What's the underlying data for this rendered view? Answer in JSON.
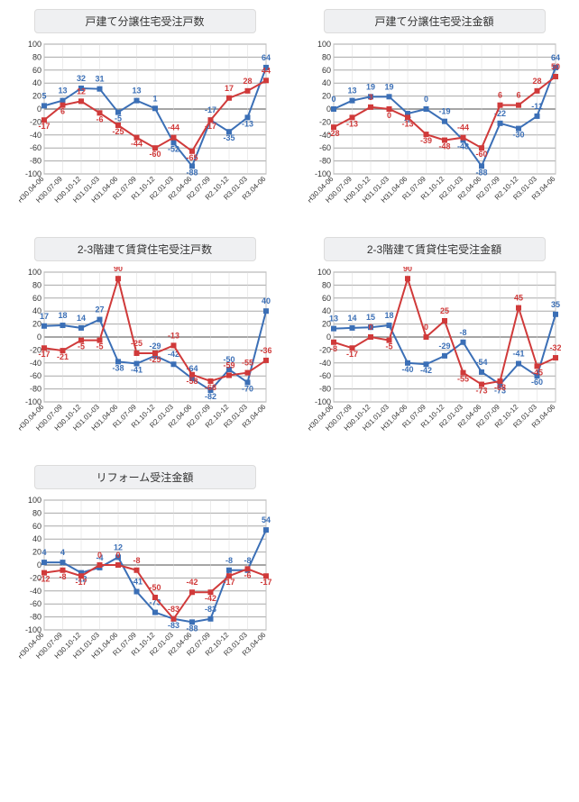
{
  "layout": {
    "cols": 2,
    "rows": 3
  },
  "common": {
    "ylim": [
      -100,
      100
    ],
    "ytick_step": 20,
    "xlabels": [
      "H30.04-06",
      "H30.07-09",
      "H30.10-12",
      "H31.01-03",
      "H31.04-06",
      "R1.07-09",
      "R1.10-12",
      "R2.01-03",
      "R2.04-06",
      "R2.07-09",
      "R2.10-12",
      "R3.01-03",
      "R3.04-06"
    ],
    "background_color": "#ffffff",
    "grid_major_color": "#a8a8a8",
    "grid_minor_color": "#d8d8d8",
    "series_colors": {
      "blue": "#3b6fb6",
      "red": "#d03a3a"
    },
    "marker_size": 3,
    "line_width": 2,
    "title_bg": "#eff0f2",
    "title_border": "#dcdcdc"
  },
  "charts": [
    {
      "id": "chart1",
      "title": "戸建て分譲住宅受注戸数",
      "series": [
        {
          "color": "blue",
          "values": [
            5,
            13,
            32,
            31,
            -5,
            13,
            1,
            -52,
            -88,
            -17,
            -35,
            -13,
            64
          ],
          "label_offsets": [
            -8,
            -8,
            -8,
            -8,
            10,
            -8,
            -8,
            10,
            10,
            -8,
            10,
            10,
            -8
          ]
        },
        {
          "color": "red",
          "values": [
            -17,
            6,
            12,
            -6,
            -25,
            -44,
            -60,
            -44,
            -65,
            -17,
            17,
            28,
            44
          ],
          "label_offsets": [
            10,
            10,
            -8,
            10,
            10,
            10,
            10,
            -8,
            10,
            10,
            -8,
            -8,
            -8
          ]
        }
      ]
    },
    {
      "id": "chart2",
      "title": "戸建て分譲住宅受注金額",
      "series": [
        {
          "color": "blue",
          "values": [
            0,
            13,
            19,
            19,
            -7,
            0,
            -19,
            -48,
            -88,
            -22,
            -30,
            -11,
            64
          ],
          "label_offsets": [
            -8,
            -8,
            -8,
            -8,
            10,
            -8,
            -8,
            10,
            10,
            -8,
            10,
            -8,
            -8
          ]
        },
        {
          "color": "red",
          "values": [
            -28,
            -13,
            3,
            0,
            -13,
            -39,
            -48,
            -44,
            -60,
            6,
            6,
            28,
            50
          ],
          "label_offsets": [
            10,
            10,
            -8,
            10,
            10,
            10,
            10,
            -8,
            10,
            -8,
            -8,
            -8,
            -8
          ]
        }
      ]
    },
    {
      "id": "chart3",
      "title": "2-3階建て賃貸住宅受注戸数",
      "series": [
        {
          "color": "blue",
          "values": [
            17,
            18,
            14,
            27,
            -38,
            -41,
            -29,
            -42,
            -64,
            -82,
            -50,
            -70,
            40
          ],
          "label_offsets": [
            -8,
            -8,
            -8,
            -8,
            10,
            10,
            -8,
            -8,
            -8,
            10,
            -8,
            10,
            -8
          ]
        },
        {
          "color": "red",
          "values": [
            -17,
            -21,
            -5,
            -5,
            90,
            -25,
            -25,
            -13,
            -58,
            -68,
            -59,
            -55,
            -36
          ],
          "label_offsets": [
            10,
            10,
            10,
            10,
            -8,
            -8,
            10,
            -8,
            10,
            10,
            -8,
            -8,
            -8
          ]
        }
      ]
    },
    {
      "id": "chart4",
      "title": "2-3階建て賃貸住宅受注金額",
      "series": [
        {
          "color": "blue",
          "values": [
            13,
            14,
            15,
            18,
            -40,
            -42,
            -29,
            -8,
            -54,
            -73,
            -41,
            -60,
            35
          ],
          "label_offsets": [
            -8,
            -8,
            -8,
            -8,
            10,
            10,
            -8,
            -8,
            -8,
            10,
            -8,
            10,
            -8
          ]
        },
        {
          "color": "red",
          "values": [
            -8,
            -17,
            0,
            -5,
            90,
            0,
            25,
            -55,
            -73,
            -68,
            45,
            -45,
            -32
          ],
          "label_offsets": [
            10,
            10,
            -8,
            10,
            -8,
            -8,
            -8,
            10,
            10,
            10,
            -8,
            10,
            -8
          ]
        }
      ]
    },
    {
      "id": "chart5",
      "title": "リフォーム受注金額",
      "series": [
        {
          "color": "blue",
          "values": [
            4,
            4,
            -12,
            -4,
            12,
            -41,
            -73,
            -83,
            -88,
            -83,
            -8,
            -8,
            54
          ],
          "label_offsets": [
            -8,
            -8,
            10,
            -8,
            -8,
            -8,
            -8,
            10,
            10,
            -8,
            -8,
            -8,
            -8
          ]
        },
        {
          "color": "red",
          "values": [
            -12,
            -8,
            -17,
            0,
            0,
            -8,
            -50,
            -83,
            -42,
            -42,
            -17,
            -6,
            -17
          ],
          "label_offsets": [
            10,
            10,
            10,
            -8,
            -8,
            -8,
            -8,
            -8,
            -8,
            10,
            10,
            10,
            10
          ]
        }
      ]
    }
  ]
}
